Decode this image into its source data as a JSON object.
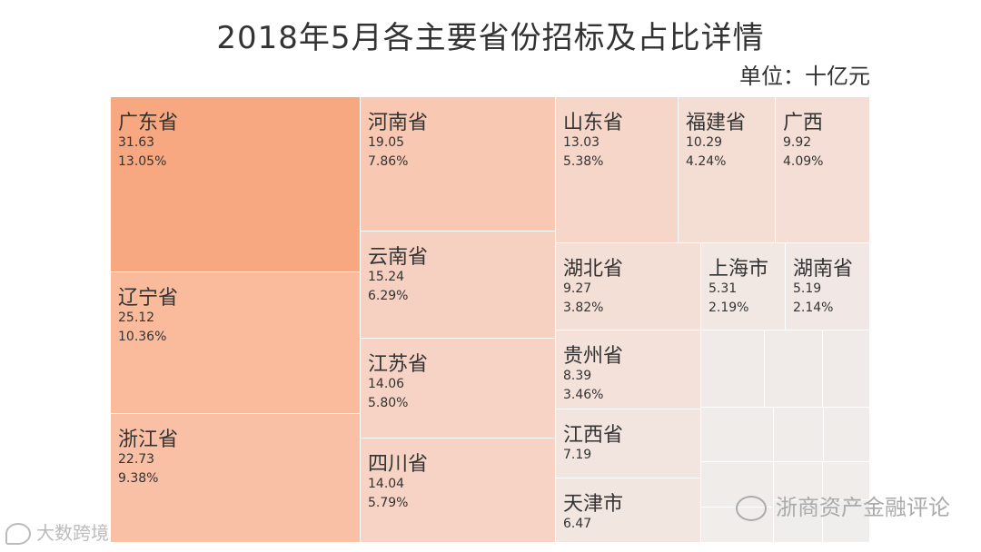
{
  "title": "2018年5月各主要省份招标及占比详情",
  "unit": "单位：十亿元",
  "chart_data": {
    "type": "treemap",
    "title": "2018年5月各主要省份招标及占比详情",
    "unit": "单位：十亿元",
    "items": [
      {
        "name": "广东省",
        "value": 31.63,
        "value_label": "31.63",
        "pct": "13.05%",
        "color": "#f8a880"
      },
      {
        "name": "辽宁省",
        "value": 25.12,
        "value_label": "25.12",
        "pct": "10.36%",
        "color": "#f9bb9c"
      },
      {
        "name": "浙江省",
        "value": 22.73,
        "value_label": "22.73",
        "pct": "9.38%",
        "color": "#f9c0a5"
      },
      {
        "name": "河南省",
        "value": 19.05,
        "value_label": "19.05",
        "pct": "7.86%",
        "color": "#f8c8b2"
      },
      {
        "name": "云南省",
        "value": 15.24,
        "value_label": "15.24",
        "pct": "6.29%",
        "color": "#f6d0c0"
      },
      {
        "name": "江苏省",
        "value": 14.06,
        "value_label": "14.06",
        "pct": "5.80%",
        "color": "#f6d3c4"
      },
      {
        "name": "四川省",
        "value": 14.04,
        "value_label": "14.04",
        "pct": "5.79%",
        "color": "#f6d3c4"
      },
      {
        "name": "山东省",
        "value": 13.03,
        "value_label": "13.03",
        "pct": "5.38%",
        "color": "#f5d6c9"
      },
      {
        "name": "福建省",
        "value": 10.29,
        "value_label": "10.29",
        "pct": "4.24%",
        "color": "#f4ddd3"
      },
      {
        "name": "广西",
        "value": 9.92,
        "value_label": "9.92",
        "pct": "4.09%",
        "color": "#f4ded5"
      },
      {
        "name": "湖北省",
        "value": 9.27,
        "value_label": "9.27",
        "pct": "3.82%",
        "color": "#f4dfd7"
      },
      {
        "name": "贵州省",
        "value": 8.39,
        "value_label": "8.39",
        "pct": "3.46%",
        "color": "#f3e1da"
      },
      {
        "name": "江西省",
        "value": 7.19,
        "value_label": "7.19",
        "pct": "",
        "color": "#f2e4de"
      },
      {
        "name": "天津市",
        "value": 6.47,
        "value_label": "6.47",
        "pct": "",
        "color": "#f2e6e1"
      },
      {
        "name": "上海市",
        "value": 5.31,
        "value_label": "5.31",
        "pct": "2.19%",
        "color": "#f1e8e4"
      },
      {
        "name": "湖南省",
        "value": 5.19,
        "value_label": "5.19",
        "pct": "2.14%",
        "color": "#f1e8e5"
      },
      {
        "name": "",
        "value": 3.6,
        "color": "#f0ebe8"
      },
      {
        "name": "",
        "value": 3.0,
        "color": "#f0ebe8"
      },
      {
        "name": "",
        "value": 2.4,
        "color": "#f0ebe9"
      },
      {
        "name": "",
        "value": 2.2,
        "color": "#f0ece9"
      },
      {
        "name": "",
        "value": 1.9,
        "color": "#f0ece9"
      },
      {
        "name": "",
        "value": 1.6,
        "color": "#f0ecea"
      },
      {
        "name": "",
        "value": 1.4,
        "color": "#f0ecea"
      },
      {
        "name": "",
        "value": 1.2,
        "color": "#f0edeb"
      },
      {
        "name": "",
        "value": 1.0,
        "color": "#f0edeb"
      },
      {
        "name": "",
        "value": 0.9,
        "color": "#f0edeb"
      },
      {
        "name": "",
        "value": 0.7,
        "color": "#f0eeec"
      },
      {
        "name": "",
        "value": 0.6,
        "color": "#f0eeec"
      }
    ]
  },
  "watermarks": {
    "left": "大数跨境",
    "right": "浙商资产金融评论"
  }
}
